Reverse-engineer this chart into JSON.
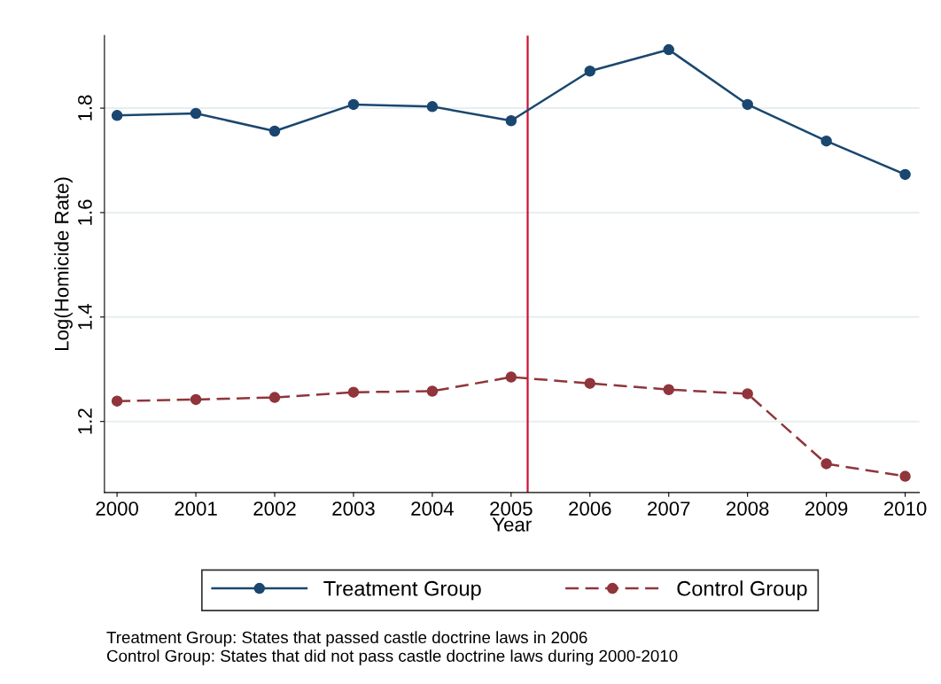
{
  "chart_data": {
    "type": "line",
    "xlabel": "Year",
    "ylabel": "Log(Homicide Rate)",
    "x": [
      2000,
      2001,
      2002,
      2003,
      2004,
      2005,
      2006,
      2007,
      2008,
      2009,
      2010
    ],
    "series": [
      {
        "name": "Treatment Group",
        "color": "#1a476f",
        "line_style": "solid",
        "values": [
          1.786,
          1.79,
          1.756,
          1.807,
          1.803,
          1.776,
          1.871,
          1.912,
          1.807,
          1.737,
          1.673
        ]
      },
      {
        "name": "Control Group",
        "color": "#90353b",
        "line_style": "dashed",
        "values": [
          1.239,
          1.242,
          1.246,
          1.256,
          1.258,
          1.285,
          1.273,
          1.261,
          1.253,
          1.119,
          1.095
        ]
      }
    ],
    "marker": "circle",
    "xlim": [
      1999.84,
      2010.18
    ],
    "xticks": [
      2000,
      2001,
      2002,
      2003,
      2004,
      2005,
      2006,
      2007,
      2008,
      2009,
      2010
    ],
    "ylim": [
      1.064,
      1.939
    ],
    "yticks": [
      1.2,
      1.4,
      1.6,
      1.8
    ],
    "grid": "y",
    "legend": "bottom",
    "ref_lines": [
      {
        "axis": "x",
        "value": 2005.21,
        "color": "#cc1133"
      }
    ],
    "annotations": [
      "Treatment Group: States that passed castle doctrine laws in 2006",
      "Control Group: States that did not pass castle doctrine laws during 2000-2010"
    ]
  }
}
